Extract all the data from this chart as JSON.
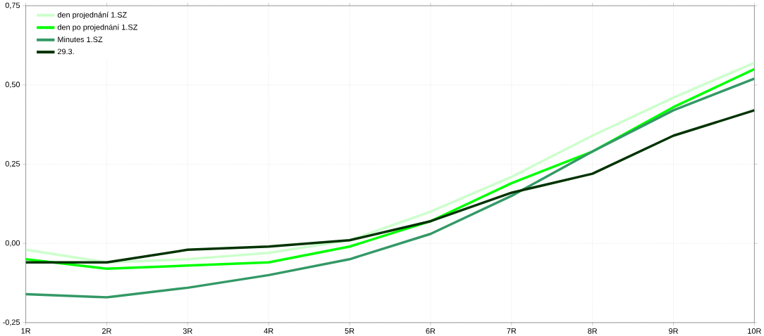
{
  "chart_data": {
    "type": "line",
    "categories": [
      "1R",
      "2R",
      "3R",
      "4R",
      "5R",
      "6R",
      "7R",
      "8R",
      "9R",
      "10R"
    ],
    "series": [
      {
        "name": "den projednání 1.SZ",
        "color": "#ccffcc",
        "values": [
          -0.02,
          -0.06,
          -0.05,
          -0.03,
          0.01,
          0.1,
          0.21,
          0.34,
          0.46,
          0.57
        ]
      },
      {
        "name": "den po projednání 1.SZ",
        "color": "#00ff00",
        "values": [
          -0.05,
          -0.08,
          -0.07,
          -0.06,
          -0.01,
          0.07,
          0.19,
          0.29,
          0.43,
          0.55
        ]
      },
      {
        "name": "Minutes 1.SZ",
        "color": "#339966",
        "values": [
          -0.16,
          -0.17,
          -0.14,
          -0.1,
          -0.05,
          0.03,
          0.15,
          0.29,
          0.42,
          0.52
        ]
      },
      {
        "name": "29.3.",
        "color": "#003300",
        "values": [
          -0.06,
          -0.06,
          -0.02,
          -0.01,
          0.01,
          0.07,
          0.16,
          0.22,
          0.34,
          0.42
        ]
      }
    ],
    "ylim": [
      -0.25,
      0.75
    ],
    "yticks": [
      {
        "value": -0.25,
        "label": "-0,25"
      },
      {
        "value": 0,
        "label": "0,00"
      },
      {
        "value": 0.25,
        "label": "0,25"
      },
      {
        "value": 0.5,
        "label": "0,50"
      },
      {
        "value": 0.75,
        "label": "0,75"
      }
    ],
    "grid": true,
    "legend": "top left",
    "marker": "none",
    "line_style": "solid"
  }
}
